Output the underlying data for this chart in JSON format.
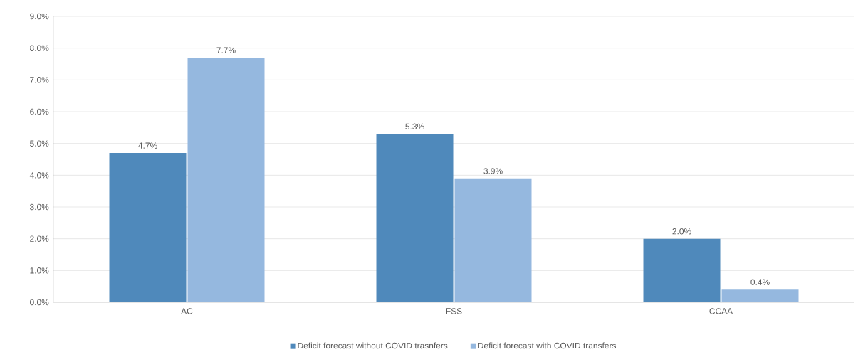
{
  "chart_data": {
    "type": "bar",
    "categories": [
      "AC",
      "FSS",
      "CCAA"
    ],
    "series": [
      {
        "name": "Deficit forecast without COVID trasnfers",
        "color": "#4f89bb",
        "values": [
          4.7,
          5.3,
          2.0
        ],
        "value_labels": [
          "4.7%",
          "5.3%",
          "2.0%"
        ]
      },
      {
        "name": "Deficit forecast with COVID transfers",
        "color": "#95b8df",
        "values": [
          7.7,
          3.9,
          0.4
        ],
        "value_labels": [
          "7.7%",
          "3.9%",
          "0.4%"
        ]
      }
    ],
    "ylim": [
      0,
      9
    ],
    "yticks": [
      {
        "value": 0,
        "label": "0.0%"
      },
      {
        "value": 1,
        "label": "1.0%"
      },
      {
        "value": 2,
        "label": "2.0%"
      },
      {
        "value": 3,
        "label": "3.0%"
      },
      {
        "value": 4,
        "label": "4.0%"
      },
      {
        "value": 5,
        "label": "5.0%"
      },
      {
        "value": 6,
        "label": "6.0%"
      },
      {
        "value": 7,
        "label": "7.0%"
      },
      {
        "value": 8,
        "label": "8.0%"
      },
      {
        "value": 9,
        "label": "9.0%"
      }
    ],
    "grid": "y",
    "legend": "bottom"
  }
}
